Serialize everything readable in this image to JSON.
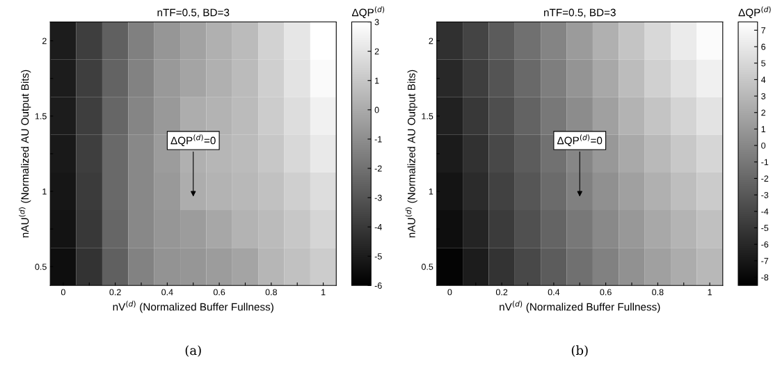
{
  "chart_data": [
    {
      "type": "heatmap",
      "title": "nTF=0.5, BD=3",
      "xlabel": "nV$^{(d)}$ (Normalized Buffer Fullness)",
      "ylabel": "nAU$^{(d)}$ (Normalized AU Output Bits)",
      "clabel": "ΔQP$^{(d)}$",
      "categories": [
        "0",
        null,
        "0.2",
        null,
        "0.4",
        null,
        "0.6",
        null,
        "0.8",
        null,
        "1"
      ],
      "y_categories": [
        "2",
        null,
        "1.5",
        null,
        "1",
        null,
        "0.5"
      ],
      "cells": [
        [
          -5.0,
          -3.8,
          -2.6,
          -1.5,
          -0.7,
          -0.3,
          0.2,
          0.6,
          1.4,
          2.1,
          3.0
        ],
        [
          -5.0,
          -3.8,
          -2.5,
          -1.4,
          -0.6,
          -0.2,
          0.2,
          0.6,
          1.3,
          2.0,
          2.8
        ],
        [
          -5.0,
          -3.8,
          -2.4,
          -1.3,
          -0.6,
          0.1,
          0.3,
          0.6,
          1.2,
          1.8,
          2.5
        ],
        [
          -5.1,
          -3.8,
          -2.3,
          -1.2,
          -0.5,
          0.2,
          0.4,
          0.6,
          1.0,
          1.6,
          2.2
        ],
        [
          -5.2,
          -3.9,
          -2.3,
          -1.2,
          -0.6,
          0.1,
          0.3,
          0.5,
          0.8,
          1.3,
          1.8
        ],
        [
          -5.3,
          -4.0,
          -2.4,
          -1.2,
          -0.7,
          -0.5,
          -0.1,
          0.3,
          0.6,
          1.0,
          1.5
        ],
        [
          -5.5,
          -4.2,
          -2.6,
          -1.4,
          -0.8,
          -0.7,
          -0.5,
          -0.2,
          0.4,
          0.8,
          1.2
        ]
      ],
      "clim": [
        -6,
        3
      ],
      "cticks": [
        -6,
        -5,
        -4,
        -3,
        -2,
        -1,
        0,
        1,
        2,
        3
      ],
      "annotations": [
        "ΔQP$^{(d)}$=0",
        "(a)"
      ]
    },
    {
      "type": "heatmap",
      "title": "nTF=0.5, BD=3",
      "xlabel": "nV$^{(d)}$ (Normalized Buffer Fullness)",
      "ylabel": "nAU$^{(d)}$ (Normalized AU Output Bits)",
      "clabel": "ΔQP$^{(d)}$",
      "categories": [
        "0",
        null,
        "0.2",
        null,
        "0.4",
        null,
        "0.6",
        null,
        "0.8",
        null,
        "1"
      ],
      "y_categories": [
        "2",
        null,
        "1.5",
        null,
        "1",
        null,
        "0.5"
      ],
      "cells": [
        [
          -5.5,
          -4.2,
          -2.8,
          -1.5,
          -0.2,
          1.2,
          2.5,
          3.8,
          5.0,
          6.2,
          7.2
        ],
        [
          -6.0,
          -4.6,
          -3.2,
          -1.9,
          -0.6,
          0.8,
          2.0,
          3.3,
          4.5,
          5.6,
          6.5
        ],
        [
          -6.4,
          -5.0,
          -3.6,
          -2.3,
          -1.0,
          0.3,
          1.5,
          2.7,
          3.8,
          4.8,
          5.7
        ],
        [
          -6.8,
          -5.4,
          -4.0,
          -2.7,
          -1.4,
          -0.1,
          1.0,
          2.1,
          3.1,
          4.0,
          4.9
        ],
        [
          -7.2,
          -5.8,
          -4.4,
          -3.1,
          -1.8,
          -0.5,
          0.5,
          1.5,
          2.5,
          3.4,
          4.2
        ],
        [
          -7.6,
          -6.2,
          -4.8,
          -3.5,
          -2.2,
          -1.0,
          0.1,
          1.0,
          2.0,
          2.8,
          3.5
        ],
        [
          -8.2,
          -6.7,
          -5.3,
          -4.0,
          -2.7,
          -1.5,
          -0.4,
          0.6,
          1.5,
          2.3,
          3.0
        ]
      ],
      "clim": [
        -8.5,
        7.5
      ],
      "cticks": [
        -8,
        -7,
        -6,
        -5,
        -4,
        -3,
        -2,
        -1,
        0,
        1,
        2,
        3,
        4,
        5,
        6,
        7
      ],
      "annotations": [
        "ΔQP$^{(d)}$=0",
        "(b)"
      ]
    }
  ]
}
